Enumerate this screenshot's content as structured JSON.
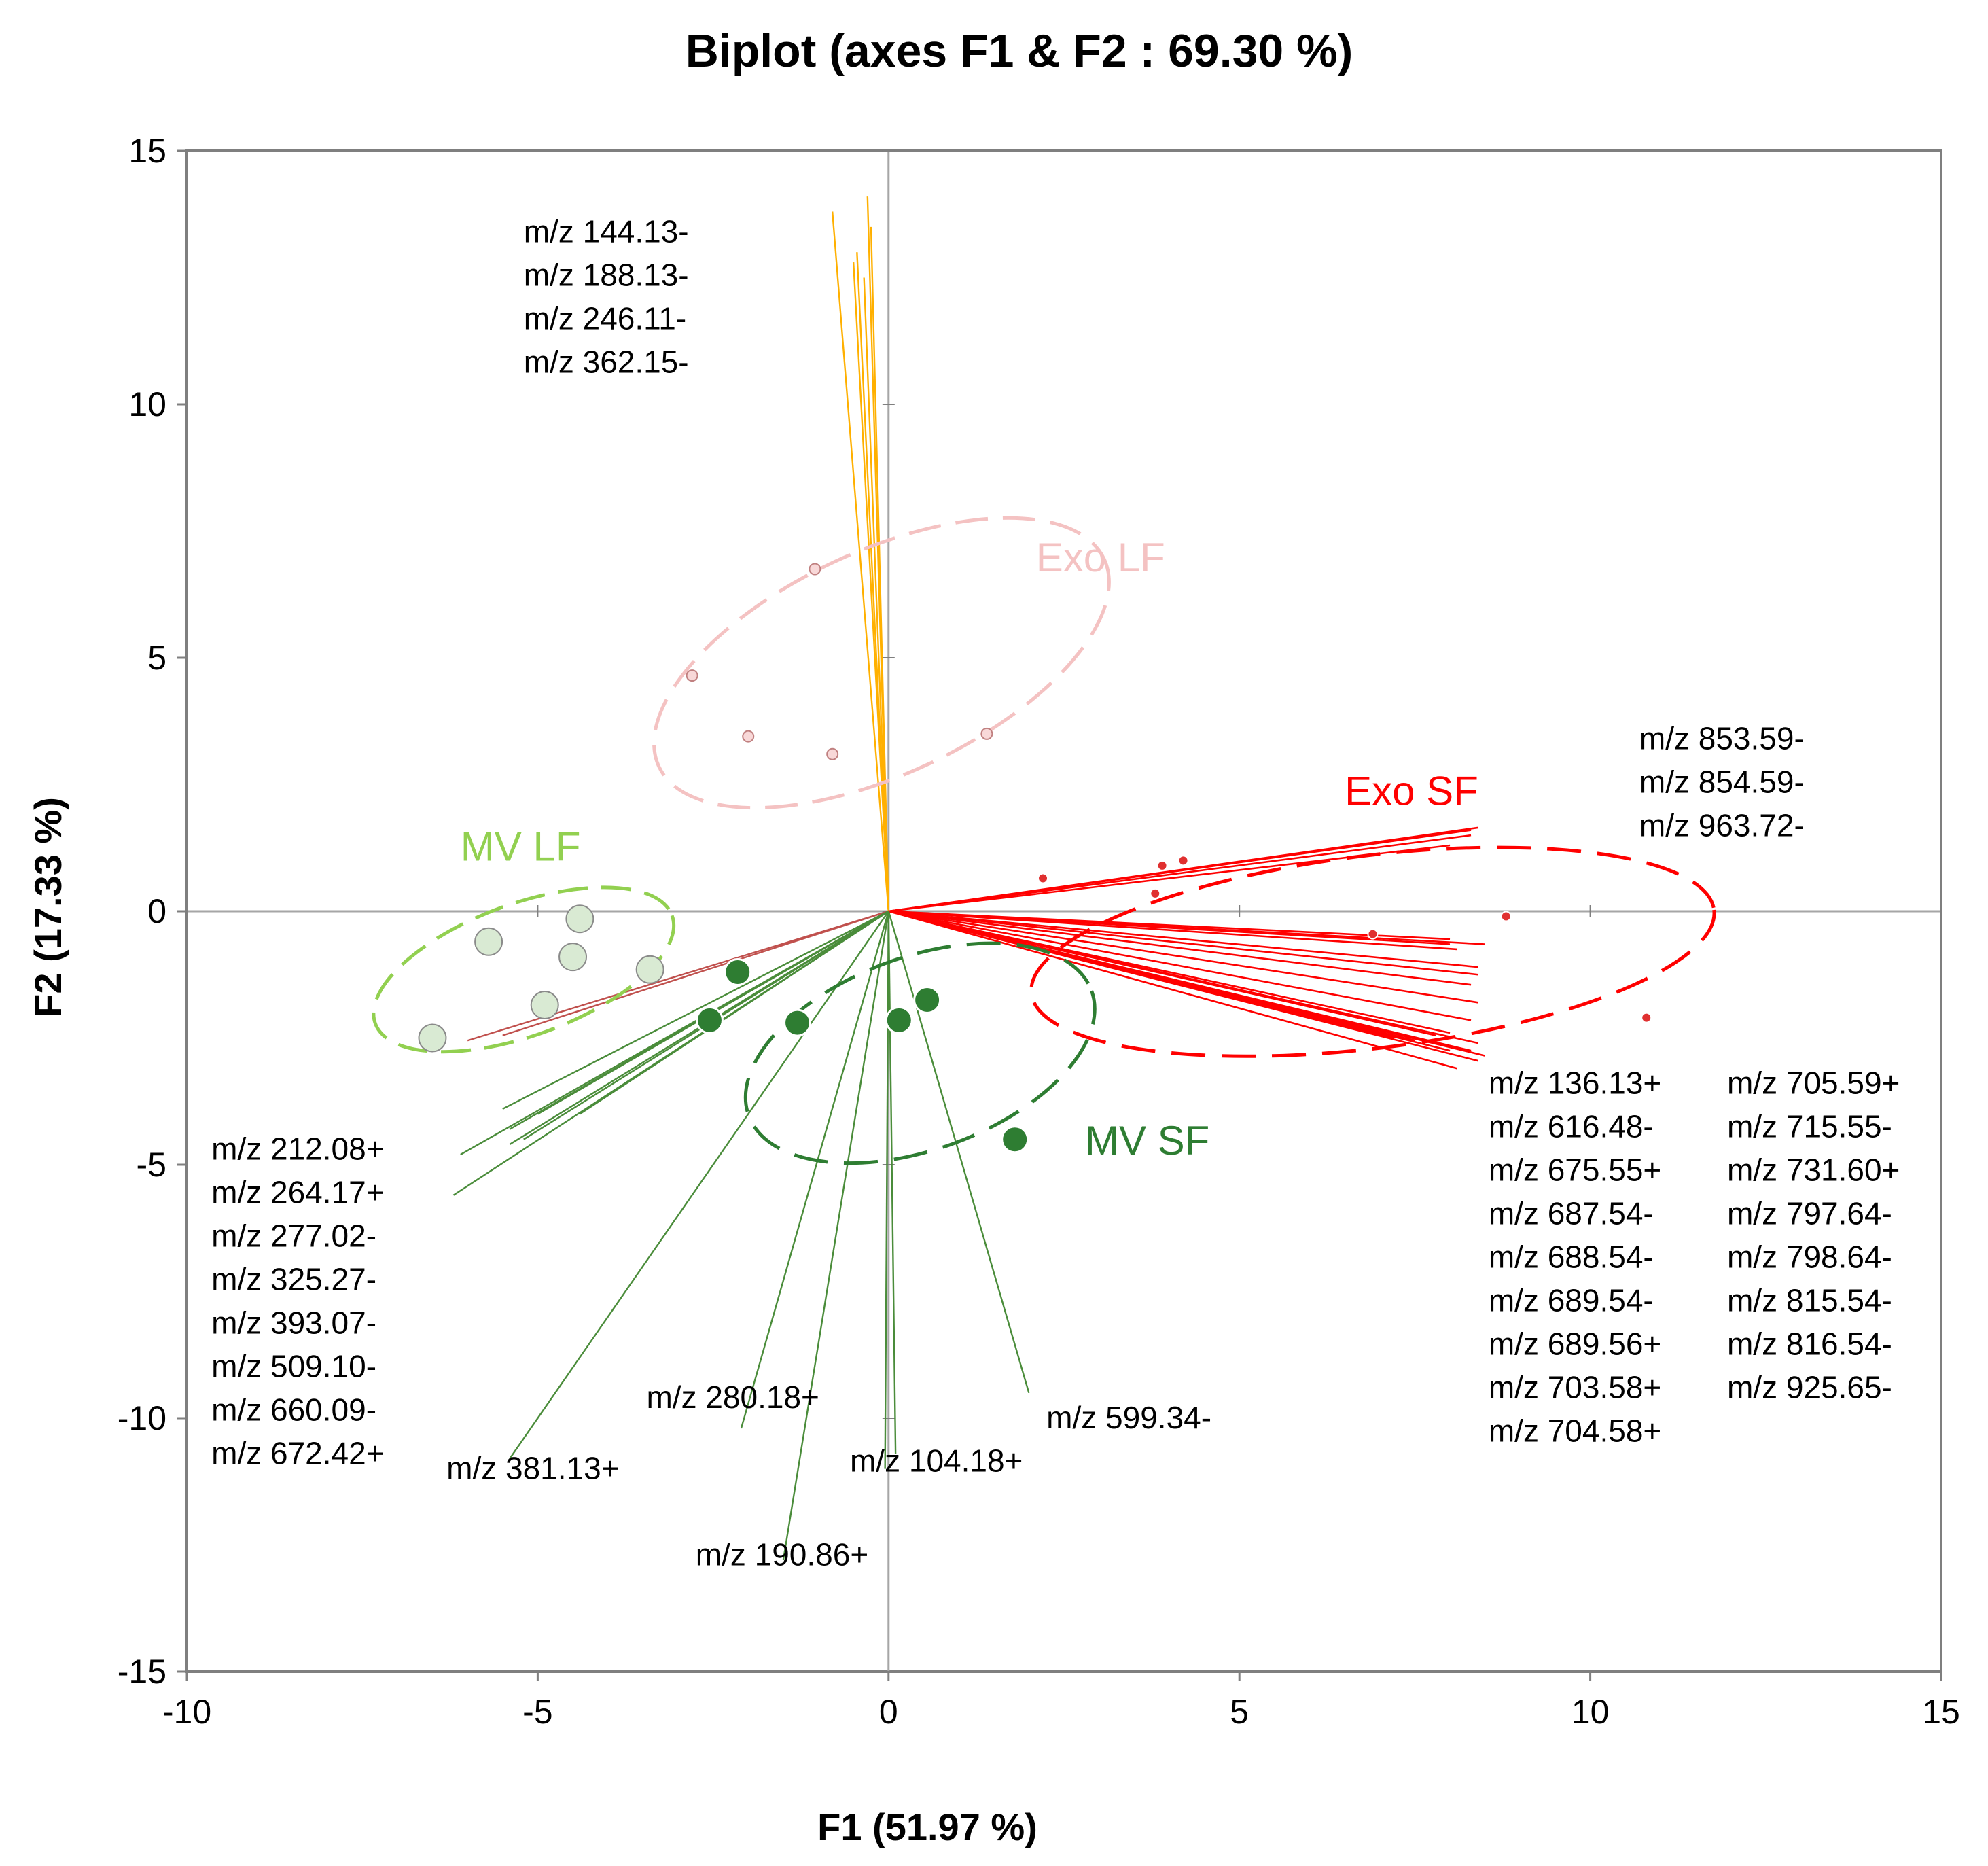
{
  "chart_data": {
    "type": "scatter",
    "subtype": "pca-biplot",
    "title": "Biplot (axes F1 & F2 : 69.30 %)",
    "xlabel": "F1 (51.97 %)",
    "ylabel": "F2 (17.33 %)",
    "xlim": [
      -10,
      15
    ],
    "ylim": [
      -15,
      15
    ],
    "xticks": [
      "-10",
      "-5",
      "0",
      "5",
      "10",
      "15"
    ],
    "yticks": [
      "15",
      "10",
      "5",
      "0",
      "-5",
      "-10",
      "-15"
    ],
    "colors": {
      "exo_lf": "#f4c2c2",
      "exo_sf": "#ff0000",
      "mv_lf": "#92d050",
      "mv_sf": "#2e7d32",
      "mv_lf_fill": "#d9ead3",
      "mv_sf_fill": "#2e7d32",
      "orange_vectors": "#ffb000",
      "green_vectors": "#4a8c3a",
      "axis": "#7f7f7f"
    },
    "groups": [
      {
        "name": "Exo LF",
        "label": "Exo LF",
        "color": "#f4c2c2",
        "label_at": [
          2.1,
          6.7
        ],
        "ellipse": {
          "cx": -0.1,
          "cy": 4.9,
          "rx": 3.5,
          "ry": 2.2,
          "angle": -25
        },
        "points": [
          [
            -1.05,
            6.75
          ],
          [
            -2.8,
            4.65
          ],
          [
            -2.0,
            3.45
          ],
          [
            -0.8,
            3.1
          ],
          [
            1.4,
            3.5
          ]
        ]
      },
      {
        "name": "Exo SF",
        "label": "Exo SF",
        "color": "#ff0000",
        "label_at": [
          6.5,
          2.1
        ],
        "ellipse": {
          "cx": 6.9,
          "cy": -0.8,
          "rx": 4.9,
          "ry": 1.9,
          "angle": -7
        },
        "points": [
          [
            2.2,
            0.65
          ],
          [
            3.9,
            0.9
          ],
          [
            4.2,
            1.0
          ],
          [
            3.8,
            0.35
          ],
          [
            6.9,
            -0.45
          ],
          [
            8.8,
            -0.1
          ],
          [
            10.8,
            -2.1
          ]
        ]
      },
      {
        "name": "MV LF",
        "label": "MV LF",
        "color": "#92d050",
        "label_at": [
          -6.1,
          1.0
        ],
        "ellipse": {
          "cx": -5.2,
          "cy": -1.15,
          "rx": 2.25,
          "ry": 1.3,
          "angle": -20
        },
        "points": [
          [
            -4.4,
            -0.15
          ],
          [
            -5.7,
            -0.6
          ],
          [
            -4.5,
            -0.9
          ],
          [
            -3.4,
            -1.15
          ],
          [
            -4.9,
            -1.85
          ],
          [
            -6.5,
            -2.5
          ]
        ]
      },
      {
        "name": "MV SF",
        "label": "MV SF",
        "color": "#2e7d32",
        "label_at": [
          2.8,
          -4.8
        ],
        "ellipse": {
          "cx": 0.45,
          "cy": -2.8,
          "rx": 2.6,
          "ry": 1.9,
          "angle": -20
        },
        "points": [
          [
            -2.15,
            -1.2
          ],
          [
            -2.55,
            -2.15
          ],
          [
            -1.3,
            -2.2
          ],
          [
            0.15,
            -2.15
          ],
          [
            0.55,
            -1.75
          ],
          [
            1.8,
            -4.5
          ]
        ]
      }
    ],
    "vectors": [
      {
        "group": "orange",
        "color": "#ffb000",
        "ends": [
          [
            -0.8,
            13.8
          ],
          [
            -0.3,
            14.1
          ],
          [
            -0.25,
            13.5
          ],
          [
            -0.45,
            13.0
          ],
          [
            -0.5,
            12.8
          ],
          [
            -0.35,
            12.5
          ]
        ]
      },
      {
        "group": "exo_sf",
        "color": "#ff0000",
        "ends": [
          [
            8.3,
            1.6
          ],
          [
            8.4,
            1.65
          ],
          [
            8.3,
            1.5
          ],
          [
            8.0,
            1.3
          ],
          [
            8.0,
            -0.55
          ],
          [
            8.0,
            -0.65
          ],
          [
            8.5,
            -0.65
          ],
          [
            8.1,
            -0.75
          ],
          [
            8.4,
            -1.1
          ],
          [
            8.4,
            -1.25
          ],
          [
            8.3,
            -1.45
          ],
          [
            8.4,
            -1.8
          ],
          [
            8.3,
            -2.15
          ],
          [
            8.0,
            -2.4
          ],
          [
            7.8,
            -2.45
          ],
          [
            8.4,
            -2.6
          ],
          [
            8.3,
            -2.75
          ],
          [
            8.0,
            -2.75
          ],
          [
            8.5,
            -2.85
          ],
          [
            8.4,
            -2.95
          ],
          [
            8.1,
            -3.1
          ],
          [
            7.5,
            -2.55
          ],
          [
            7.2,
            -2.5
          ]
        ]
      },
      {
        "group": "mv_lf",
        "color": "#c0504d",
        "ends": [
          [
            -5.5,
            -2.45
          ],
          [
            -6.0,
            -2.55
          ]
        ]
      },
      {
        "group": "mv_sf",
        "color": "#4a8c3a",
        "ends": [
          [
            -6.1,
            -4.8
          ],
          [
            -6.2,
            -5.6
          ],
          [
            -5.5,
            -3.9
          ],
          [
            -5.4,
            -4.3
          ],
          [
            -5.4,
            -4.6
          ],
          [
            -5.2,
            -4.5
          ],
          [
            -5.0,
            -4.0
          ],
          [
            -4.4,
            -4.0
          ],
          [
            -5.4,
            -10.8
          ],
          [
            -2.1,
            -10.2
          ],
          [
            -1.5,
            -12.8
          ],
          [
            -0.05,
            -11.0
          ],
          [
            0.1,
            -10.7
          ],
          [
            2.0,
            -9.5
          ]
        ]
      }
    ],
    "variable_labels": [
      {
        "x": -5.2,
        "y": 13.2,
        "lines": [
          "m/z 144.13-",
          "m/z 188.13-",
          "m/z 246.11-",
          "m/z 362.15-"
        ]
      },
      {
        "x": 10.7,
        "y": 3.2,
        "lines": [
          "m/z 853.59-",
          "m/z 854.59-",
          "m/z 963.72-"
        ]
      },
      {
        "x": 8.55,
        "y": -3.6,
        "lines": [
          "m/z 136.13+",
          "m/z 616.48-",
          "m/z 675.55+",
          "m/z 687.54-",
          "m/z 688.54-",
          "m/z 689.54-",
          "m/z 689.56+",
          "m/z 703.58+",
          "m/z 704.58+"
        ]
      },
      {
        "x": 11.95,
        "y": -3.6,
        "lines": [
          "m/z 705.59+",
          "m/z 715.55-",
          "m/z 731.60+",
          "m/z 797.64-",
          "m/z 798.64-",
          "m/z 815.54-",
          "m/z 816.54-",
          "m/z 925.65-"
        ]
      },
      {
        "x": -9.65,
        "y": -4.9,
        "lines": [
          "m/z 212.08+",
          "m/z 264.17+",
          "m/z 277.02-",
          "m/z 325.27-",
          "m/z 393.07-",
          "m/z 509.10-",
          "m/z 660.09-",
          "m/z 672.42+"
        ]
      },
      {
        "x": -6.3,
        "y": -11.2,
        "lines": [
          "m/z 381.13+"
        ]
      },
      {
        "x": -3.45,
        "y": -9.8,
        "lines": [
          "m/z 280.18+"
        ]
      },
      {
        "x": -0.55,
        "y": -11.05,
        "lines": [
          "m/z 104.18+"
        ]
      },
      {
        "x": 2.25,
        "y": -10.2,
        "lines": [
          "m/z 599.34-"
        ]
      },
      {
        "x": -2.75,
        "y": -12.9,
        "lines": [
          "m/z 190.86+"
        ]
      }
    ]
  }
}
